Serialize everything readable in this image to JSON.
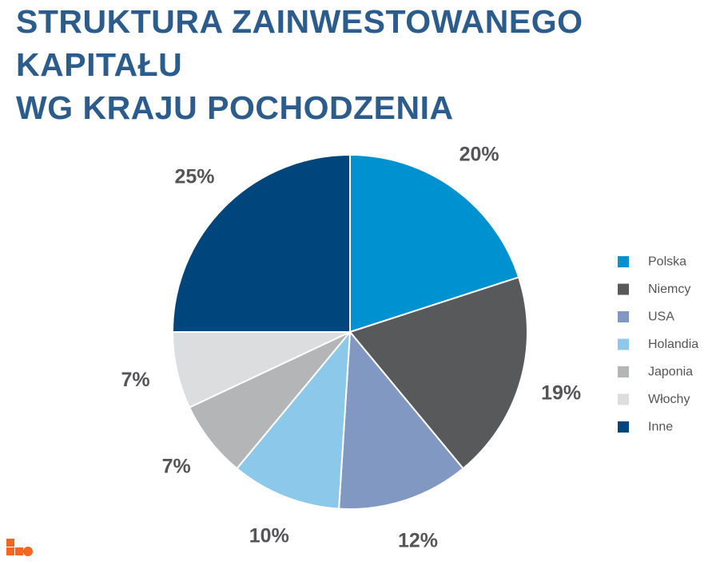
{
  "title_lines": [
    "STRUKTURA ZAINWESTOWANEGO KAPITAŁU",
    "WG KRAJU POCHODZENIA"
  ],
  "chart_data": {
    "type": "pie",
    "title": "STRUKTURA ZAINWESTOWANEGO KAPITAŁU WG KRAJU POCHODZENIA",
    "legend_position": "right",
    "slices": [
      {
        "label": "Polska",
        "value": 20,
        "display": "20%",
        "color": "#0091d0"
      },
      {
        "label": "Niemcy",
        "value": 19,
        "display": "19%",
        "color": "#58595b"
      },
      {
        "label": "USA",
        "value": 12,
        "display": "12%",
        "color": "#8199c2"
      },
      {
        "label": "Holandia",
        "value": 10,
        "display": "10%",
        "color": "#8cc8ea"
      },
      {
        "label": "Japonia",
        "value": 7,
        "display": "7%",
        "color": "#b4b5b7"
      },
      {
        "label": "Włochy",
        "value": 7,
        "display": "7%",
        "color": "#dcdddf"
      },
      {
        "label": "Inne",
        "value": 25,
        "display": "25%",
        "color": "#00467d"
      }
    ]
  },
  "colors": {
    "title": "#2b5c8c",
    "logo": "#f26522"
  },
  "logo_icon": "orange-blocks-logo-icon"
}
